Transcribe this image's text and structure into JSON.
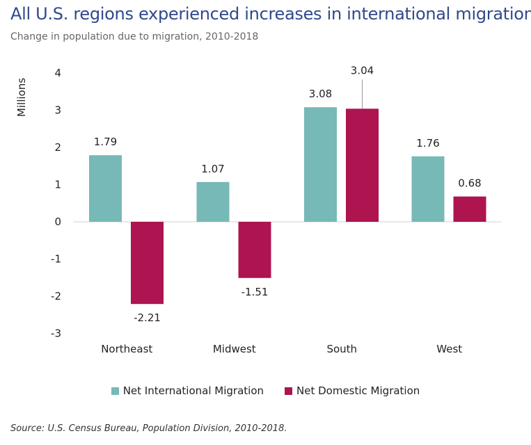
{
  "title": "All U.S. regions experienced increases in international migration.",
  "subtitle": "Change in population due to migration, 2010-2018",
  "source": "Source: U.S. Census Bureau, Population Division, 2010-2018.",
  "chart_data": {
    "type": "bar",
    "title": "All U.S. regions experienced increases in international migration.",
    "ylabel": "Millions",
    "xlabel": "",
    "ylim": [
      -3,
      4
    ],
    "yticks": [
      "4",
      "3",
      "2",
      "1",
      "0",
      "-1",
      "-2",
      "-3"
    ],
    "grid": false,
    "legend_position": "bottom",
    "categories": [
      "Northeast",
      "Midwest",
      "South",
      "West"
    ],
    "series": [
      {
        "name": "Net International Migration",
        "color": "#76b9b6",
        "values": [
          1.79,
          1.07,
          3.08,
          1.76
        ],
        "labels": [
          "1.79",
          "1.07",
          "3.08",
          "1.76"
        ]
      },
      {
        "name": "Net Domestic Migration",
        "color": "#ad1450",
        "values": [
          -2.21,
          -1.51,
          3.04,
          0.68
        ],
        "labels": [
          "-2.21",
          "-1.51",
          "3.04",
          "0.68"
        ]
      }
    ]
  }
}
